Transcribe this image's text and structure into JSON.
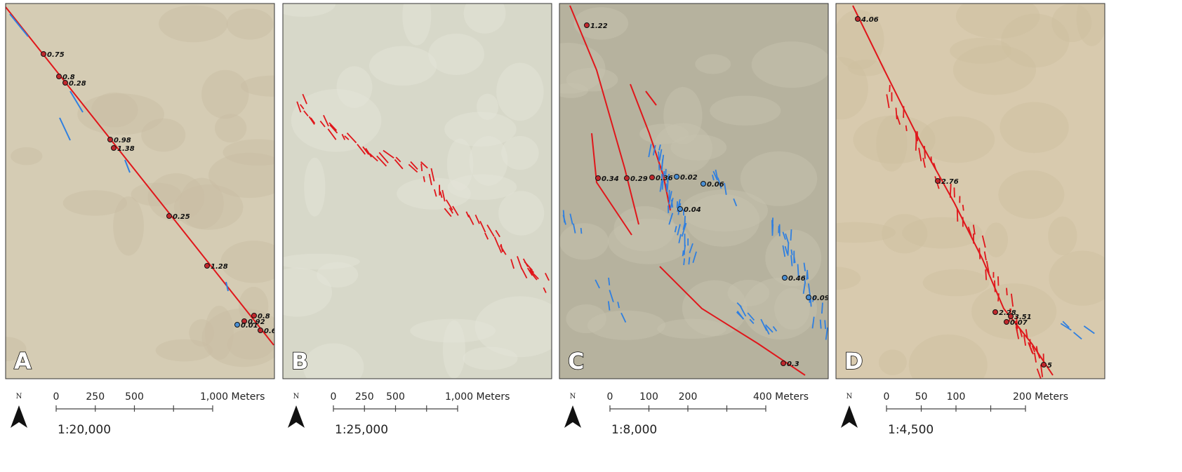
{
  "panels": [
    {
      "letter": "A",
      "north": "N",
      "ratio": "1:20,000",
      "scale": {
        "labels": [
          "0",
          "250",
          "500",
          "1,000 Meters"
        ]
      },
      "points": [
        {
          "label": "0.75",
          "color": "#c0282d"
        },
        {
          "label": "0.8",
          "color": "#c0282d"
        },
        {
          "label": "0.28",
          "color": "#c0282d"
        },
        {
          "label": "0.98",
          "color": "#c0282d"
        },
        {
          "label": "1.38",
          "color": "#c0282d"
        },
        {
          "label": "0.25",
          "color": "#c0282d"
        },
        {
          "label": "1.28",
          "color": "#c0282d"
        },
        {
          "label": "0.8",
          "color": "#c0282d"
        },
        {
          "label": "0.92",
          "color": "#c0282d"
        },
        {
          "label": "0.01",
          "color": "#4a8fd4"
        },
        {
          "label": "0.6",
          "color": "#c0282d"
        }
      ]
    },
    {
      "letter": "B",
      "north": "N",
      "ratio": "1:25,000",
      "scale": {
        "labels": [
          "0",
          "250",
          "500",
          "1,000 Meters"
        ]
      },
      "points": []
    },
    {
      "letter": "C",
      "north": "N",
      "ratio": "1:8,000",
      "scale": {
        "labels": [
          "0",
          "100",
          "200",
          "400 Meters"
        ]
      },
      "points": [
        {
          "label": "1.22",
          "color": "#c0282d"
        },
        {
          "label": "0.34",
          "color": "#c0282d"
        },
        {
          "label": "0.29",
          "color": "#c0282d"
        },
        {
          "label": "0.36",
          "color": "#c0282d"
        },
        {
          "label": "0.02",
          "color": "#4a8fd4"
        },
        {
          "label": "0.06",
          "color": "#4a8fd4"
        },
        {
          "label": "0.04",
          "color": "#4a8fd4"
        },
        {
          "label": "0.46",
          "color": "#4a8fd4"
        },
        {
          "label": "0.09",
          "color": "#4a8fd4"
        },
        {
          "label": "0.3",
          "color": "#c0282d"
        }
      ]
    },
    {
      "letter": "D",
      "north": "N",
      "ratio": "1:4,500",
      "scale": {
        "labels": [
          "0",
          "50",
          "100",
          "200 Meters"
        ]
      },
      "points": [
        {
          "label": "4.06",
          "color": "#c0282d"
        },
        {
          "label": "2.76",
          "color": "#c0282d"
        },
        {
          "label": "2.28",
          "color": "#c0282d"
        },
        {
          "label": "3.51",
          "color": "#c0282d"
        },
        {
          "label": "0.07",
          "color": "#c0282d"
        },
        {
          "label": "5",
          "color": "#c0282d"
        }
      ]
    }
  ]
}
